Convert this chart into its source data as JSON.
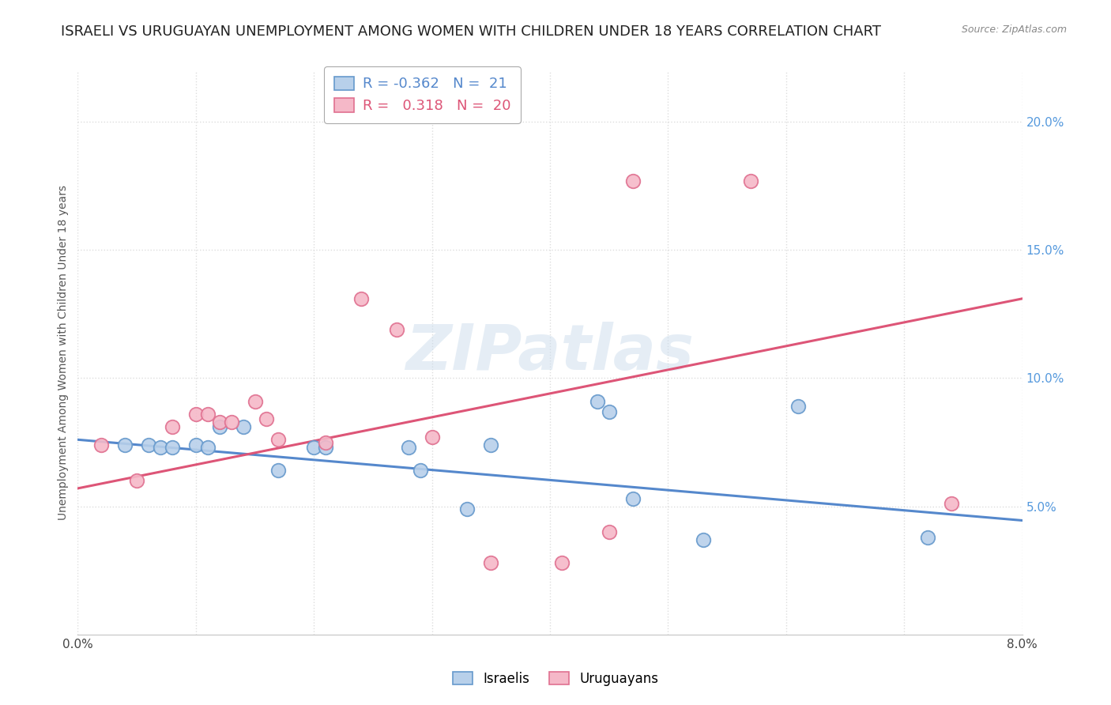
{
  "title": "ISRAELI VS URUGUAYAN UNEMPLOYMENT AMONG WOMEN WITH CHILDREN UNDER 18 YEARS CORRELATION CHART",
  "source": "Source: ZipAtlas.com",
  "ylabel": "Unemployment Among Women with Children Under 18 years",
  "xmin": 0.0,
  "xmax": 0.08,
  "ymin": 0.0,
  "ymax": 0.22,
  "watermark_text": "ZIPatlas",
  "legend_blue_r": "-0.362",
  "legend_blue_n": "21",
  "legend_pink_r": "0.318",
  "legend_pink_n": "20",
  "blue_fill": "#b8d0ea",
  "pink_fill": "#f5b8c8",
  "blue_edge": "#6699cc",
  "pink_edge": "#e07090",
  "blue_line": "#5588cc",
  "pink_line": "#dd5577",
  "blue_scatter": [
    [
      0.004,
      0.074
    ],
    [
      0.006,
      0.074
    ],
    [
      0.007,
      0.073
    ],
    [
      0.008,
      0.073
    ],
    [
      0.01,
      0.074
    ],
    [
      0.011,
      0.073
    ],
    [
      0.012,
      0.081
    ],
    [
      0.014,
      0.081
    ],
    [
      0.017,
      0.064
    ],
    [
      0.02,
      0.073
    ],
    [
      0.021,
      0.073
    ],
    [
      0.028,
      0.073
    ],
    [
      0.029,
      0.064
    ],
    [
      0.033,
      0.049
    ],
    [
      0.035,
      0.074
    ],
    [
      0.044,
      0.091
    ],
    [
      0.045,
      0.087
    ],
    [
      0.047,
      0.053
    ],
    [
      0.053,
      0.037
    ],
    [
      0.061,
      0.089
    ],
    [
      0.072,
      0.038
    ]
  ],
  "pink_scatter": [
    [
      0.002,
      0.074
    ],
    [
      0.005,
      0.06
    ],
    [
      0.008,
      0.081
    ],
    [
      0.01,
      0.086
    ],
    [
      0.011,
      0.086
    ],
    [
      0.012,
      0.083
    ],
    [
      0.013,
      0.083
    ],
    [
      0.015,
      0.091
    ],
    [
      0.016,
      0.084
    ],
    [
      0.017,
      0.076
    ],
    [
      0.021,
      0.075
    ],
    [
      0.024,
      0.131
    ],
    [
      0.027,
      0.119
    ],
    [
      0.03,
      0.077
    ],
    [
      0.035,
      0.028
    ],
    [
      0.041,
      0.028
    ],
    [
      0.045,
      0.04
    ],
    [
      0.047,
      0.177
    ],
    [
      0.057,
      0.177
    ],
    [
      0.074,
      0.051
    ]
  ],
  "blue_trend": [
    0.0,
    0.076,
    0.08,
    0.0445
  ],
  "pink_trend": [
    0.0,
    0.057,
    0.08,
    0.131
  ],
  "ytick_vals": [
    0.05,
    0.1,
    0.15,
    0.2
  ],
  "ytick_labels": [
    "5.0%",
    "10.0%",
    "15.0%",
    "20.0%"
  ],
  "xtick_vals": [
    0.0,
    0.01,
    0.02,
    0.03,
    0.04,
    0.05,
    0.06,
    0.07,
    0.08
  ],
  "grid_color": "#dddddd",
  "bg_color": "#ffffff",
  "title_fontsize": 13,
  "tick_fontsize": 11
}
